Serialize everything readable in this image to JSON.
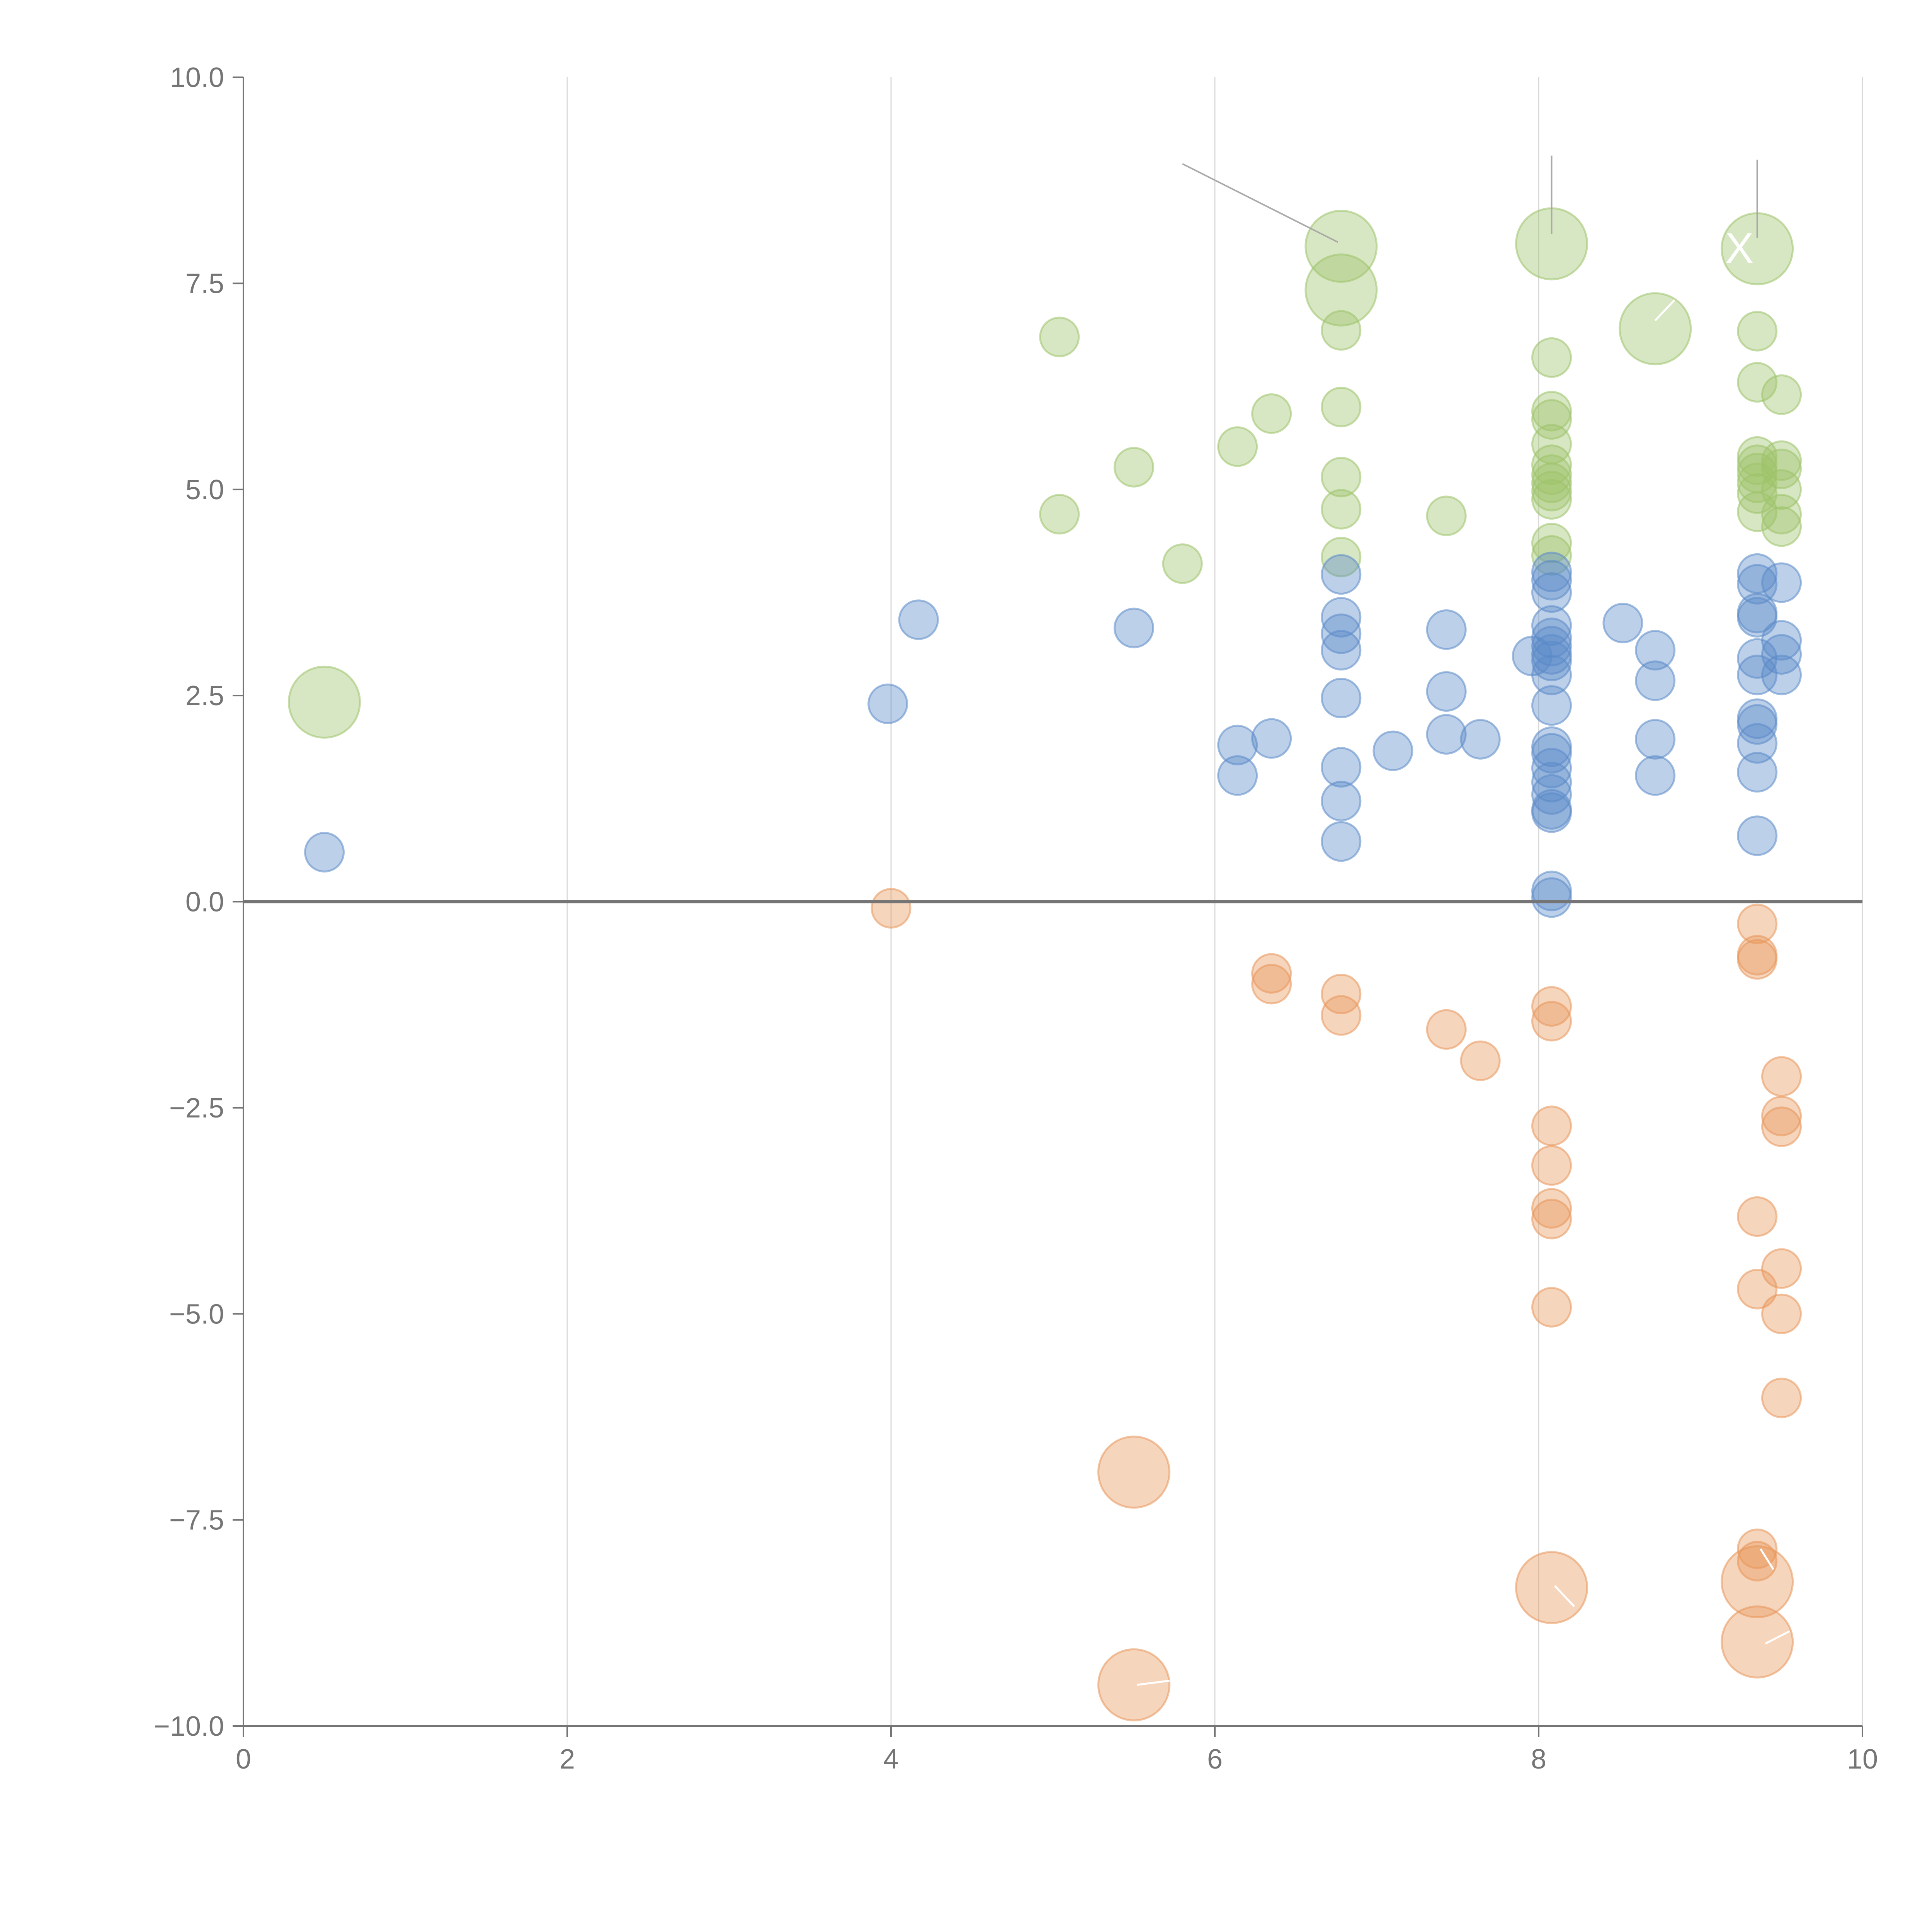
{
  "chart_data": {
    "type": "scatter",
    "title": "",
    "xlabel": "",
    "ylabel": "",
    "xlim": [
      0,
      10
    ],
    "ylim": [
      -10,
      10
    ],
    "x_ticks": [
      "0",
      "2",
      "4",
      "6",
      "8",
      "10"
    ],
    "y_ticks": [
      "10.0",
      "7.5",
      "5.0",
      "2.5",
      "0.0",
      "−2.5",
      "−5.0",
      "−7.5",
      "−10.0"
    ],
    "grid": "vertical",
    "colors": {
      "green": "#9DC36A",
      "blue": "#5B8AC9",
      "orange": "#E8955A",
      "axis": "#757575"
    },
    "series": [
      {
        "name": "green",
        "color": "#9DC36A",
        "points": [
          [
            0.5,
            2.42,
            3
          ],
          [
            6.78,
            7.95,
            3
          ],
          [
            6.78,
            7.42,
            3
          ],
          [
            8.08,
            7.98,
            3
          ],
          [
            9.35,
            7.92,
            3
          ],
          [
            8.72,
            6.95,
            3
          ],
          [
            5.04,
            6.85,
            1
          ],
          [
            6.78,
            6.93,
            1
          ],
          [
            8.08,
            6.6,
            1
          ],
          [
            9.35,
            6.92,
            1
          ],
          [
            9.35,
            6.3,
            1
          ],
          [
            9.5,
            6.15,
            1
          ],
          [
            6.78,
            6.0,
            1
          ],
          [
            6.35,
            5.92,
            1
          ],
          [
            6.14,
            5.52,
            1
          ],
          [
            5.5,
            5.27,
            1
          ],
          [
            6.78,
            5.15,
            1
          ],
          [
            6.78,
            4.76,
            1
          ],
          [
            5.04,
            4.7,
            1
          ],
          [
            7.43,
            4.68,
            1
          ],
          [
            5.8,
            4.1,
            1
          ],
          [
            6.78,
            4.18,
            1
          ],
          [
            8.08,
            5.95,
            1
          ],
          [
            8.08,
            5.85,
            1
          ],
          [
            8.08,
            5.55,
            1
          ],
          [
            8.08,
            5.3,
            1
          ],
          [
            8.08,
            5.18,
            1
          ],
          [
            8.08,
            5.08,
            1
          ],
          [
            8.08,
            4.98,
            1
          ],
          [
            8.08,
            4.88,
            1
          ],
          [
            8.08,
            4.35,
            1
          ],
          [
            8.08,
            4.2,
            1
          ],
          [
            9.35,
            5.4,
            1
          ],
          [
            9.35,
            5.3,
            1
          ],
          [
            9.35,
            5.2,
            1
          ],
          [
            9.35,
            5.08,
            1
          ],
          [
            9.35,
            4.95,
            1
          ],
          [
            9.35,
            4.73,
            1
          ],
          [
            9.5,
            5.35,
            1
          ],
          [
            9.5,
            5.25,
            1
          ],
          [
            9.5,
            5.0,
            1
          ],
          [
            9.5,
            4.7,
            1
          ],
          [
            9.5,
            4.55,
            1
          ]
        ]
      },
      {
        "name": "blue",
        "color": "#5B8AC9",
        "points": [
          [
            0.5,
            0.6,
            1
          ],
          [
            3.98,
            2.4,
            1
          ],
          [
            4.17,
            3.42,
            1
          ],
          [
            5.5,
            3.32,
            1
          ],
          [
            6.14,
            1.9,
            1
          ],
          [
            6.14,
            1.53,
            1
          ],
          [
            6.35,
            1.98,
            1
          ],
          [
            6.78,
            3.97,
            1
          ],
          [
            6.78,
            3.45,
            1
          ],
          [
            6.78,
            3.25,
            1
          ],
          [
            6.78,
            3.05,
            1
          ],
          [
            6.78,
            2.47,
            1
          ],
          [
            6.78,
            1.63,
            1
          ],
          [
            6.78,
            1.22,
            1
          ],
          [
            6.78,
            0.73,
            1
          ],
          [
            7.1,
            1.83,
            1
          ],
          [
            7.43,
            3.3,
            1
          ],
          [
            7.43,
            2.55,
            1
          ],
          [
            7.43,
            2.03,
            1
          ],
          [
            7.64,
            1.97,
            1
          ],
          [
            8.08,
            4.0,
            1
          ],
          [
            8.08,
            3.9,
            1
          ],
          [
            8.08,
            3.75,
            1
          ],
          [
            8.08,
            3.35,
            1
          ],
          [
            8.08,
            3.2,
            1
          ],
          [
            8.08,
            3.1,
            1
          ],
          [
            8.08,
            3.0,
            1
          ],
          [
            8.08,
            2.92,
            1
          ],
          [
            7.96,
            2.98,
            1
          ],
          [
            8.08,
            2.75,
            1
          ],
          [
            8.08,
            2.38,
            1
          ],
          [
            8.08,
            1.88,
            1
          ],
          [
            8.08,
            1.8,
            1
          ],
          [
            8.08,
            1.62,
            1
          ],
          [
            8.08,
            1.45,
            1
          ],
          [
            8.08,
            1.3,
            1
          ],
          [
            8.08,
            1.12,
            1
          ],
          [
            8.08,
            1.08,
            1
          ],
          [
            8.08,
            0.13,
            1
          ],
          [
            8.08,
            0.05,
            1
          ],
          [
            8.52,
            3.38,
            1
          ],
          [
            8.72,
            3.05,
            1
          ],
          [
            8.72,
            2.68,
            1
          ],
          [
            8.72,
            1.97,
            1
          ],
          [
            8.72,
            1.53,
            1
          ],
          [
            9.35,
            3.98,
            1
          ],
          [
            9.35,
            3.85,
            1
          ],
          [
            9.35,
            3.5,
            1
          ],
          [
            9.35,
            3.45,
            1
          ],
          [
            9.35,
            2.95,
            1
          ],
          [
            9.35,
            2.75,
            1
          ],
          [
            9.35,
            2.22,
            1
          ],
          [
            9.35,
            2.15,
            1
          ],
          [
            9.35,
            1.92,
            1
          ],
          [
            9.35,
            1.57,
            1
          ],
          [
            9.35,
            0.8,
            1
          ],
          [
            9.5,
            3.87,
            1
          ],
          [
            9.5,
            3.17,
            1
          ],
          [
            9.5,
            3.0,
            1
          ],
          [
            9.5,
            2.75,
            1
          ]
        ]
      },
      {
        "name": "orange",
        "color": "#E8955A",
        "points": [
          [
            4.0,
            -0.08,
            1
          ],
          [
            6.35,
            -0.87,
            1
          ],
          [
            6.35,
            -1.0,
            1
          ],
          [
            6.78,
            -1.12,
            1
          ],
          [
            6.78,
            -1.38,
            1
          ],
          [
            7.43,
            -1.55,
            1
          ],
          [
            7.64,
            -1.93,
            1
          ],
          [
            8.08,
            -1.27,
            1
          ],
          [
            8.08,
            -1.45,
            1
          ],
          [
            8.08,
            -2.72,
            1
          ],
          [
            8.08,
            -3.2,
            1
          ],
          [
            8.08,
            -3.72,
            1
          ],
          [
            8.08,
            -3.85,
            1
          ],
          [
            8.08,
            -4.92,
            1
          ],
          [
            9.35,
            -0.27,
            1
          ],
          [
            9.35,
            -0.65,
            1
          ],
          [
            9.35,
            -0.7,
            1
          ],
          [
            9.5,
            -2.12,
            1
          ],
          [
            9.5,
            -2.6,
            1
          ],
          [
            9.5,
            -2.73,
            1
          ],
          [
            9.35,
            -3.82,
            1
          ],
          [
            9.35,
            -4.7,
            1
          ],
          [
            9.5,
            -4.45,
            1
          ],
          [
            9.5,
            -5.0,
            1
          ],
          [
            9.5,
            -6.02,
            1
          ],
          [
            9.35,
            -7.85,
            1
          ],
          [
            9.35,
            -8.0,
            1
          ],
          [
            5.5,
            -6.92,
            3
          ],
          [
            5.5,
            -9.5,
            3
          ],
          [
            8.08,
            -8.32,
            3
          ],
          [
            9.35,
            -8.25,
            3
          ],
          [
            9.35,
            -8.98,
            3
          ]
        ]
      }
    ],
    "annotations": [
      {
        "type": "leader",
        "from": [
          5.8,
          8.95
        ],
        "to": [
          6.76,
          8.0
        ]
      },
      {
        "type": "leader",
        "from": [
          8.08,
          9.05
        ],
        "to": [
          8.08,
          8.1
        ]
      },
      {
        "type": "leader",
        "from": [
          9.35,
          9.0
        ],
        "to": [
          9.35,
          8.05
        ]
      },
      {
        "type": "white-line",
        "from": [
          8.72,
          7.05
        ],
        "to": [
          8.84,
          7.3
        ]
      },
      {
        "type": "white-line",
        "from": [
          5.52,
          -9.5
        ],
        "to": [
          5.72,
          -9.45
        ]
      },
      {
        "type": "white-line",
        "from": [
          8.1,
          -8.3
        ],
        "to": [
          8.22,
          -8.55
        ]
      },
      {
        "type": "white-line",
        "from": [
          9.37,
          -7.85
        ],
        "to": [
          9.45,
          -8.1
        ]
      },
      {
        "type": "white-line",
        "from": [
          9.4,
          -9.0
        ],
        "to": [
          9.55,
          -8.85
        ]
      }
    ],
    "mark_text": [
      {
        "text": "X",
        "x": 9.24,
        "y": 7.75
      }
    ]
  }
}
